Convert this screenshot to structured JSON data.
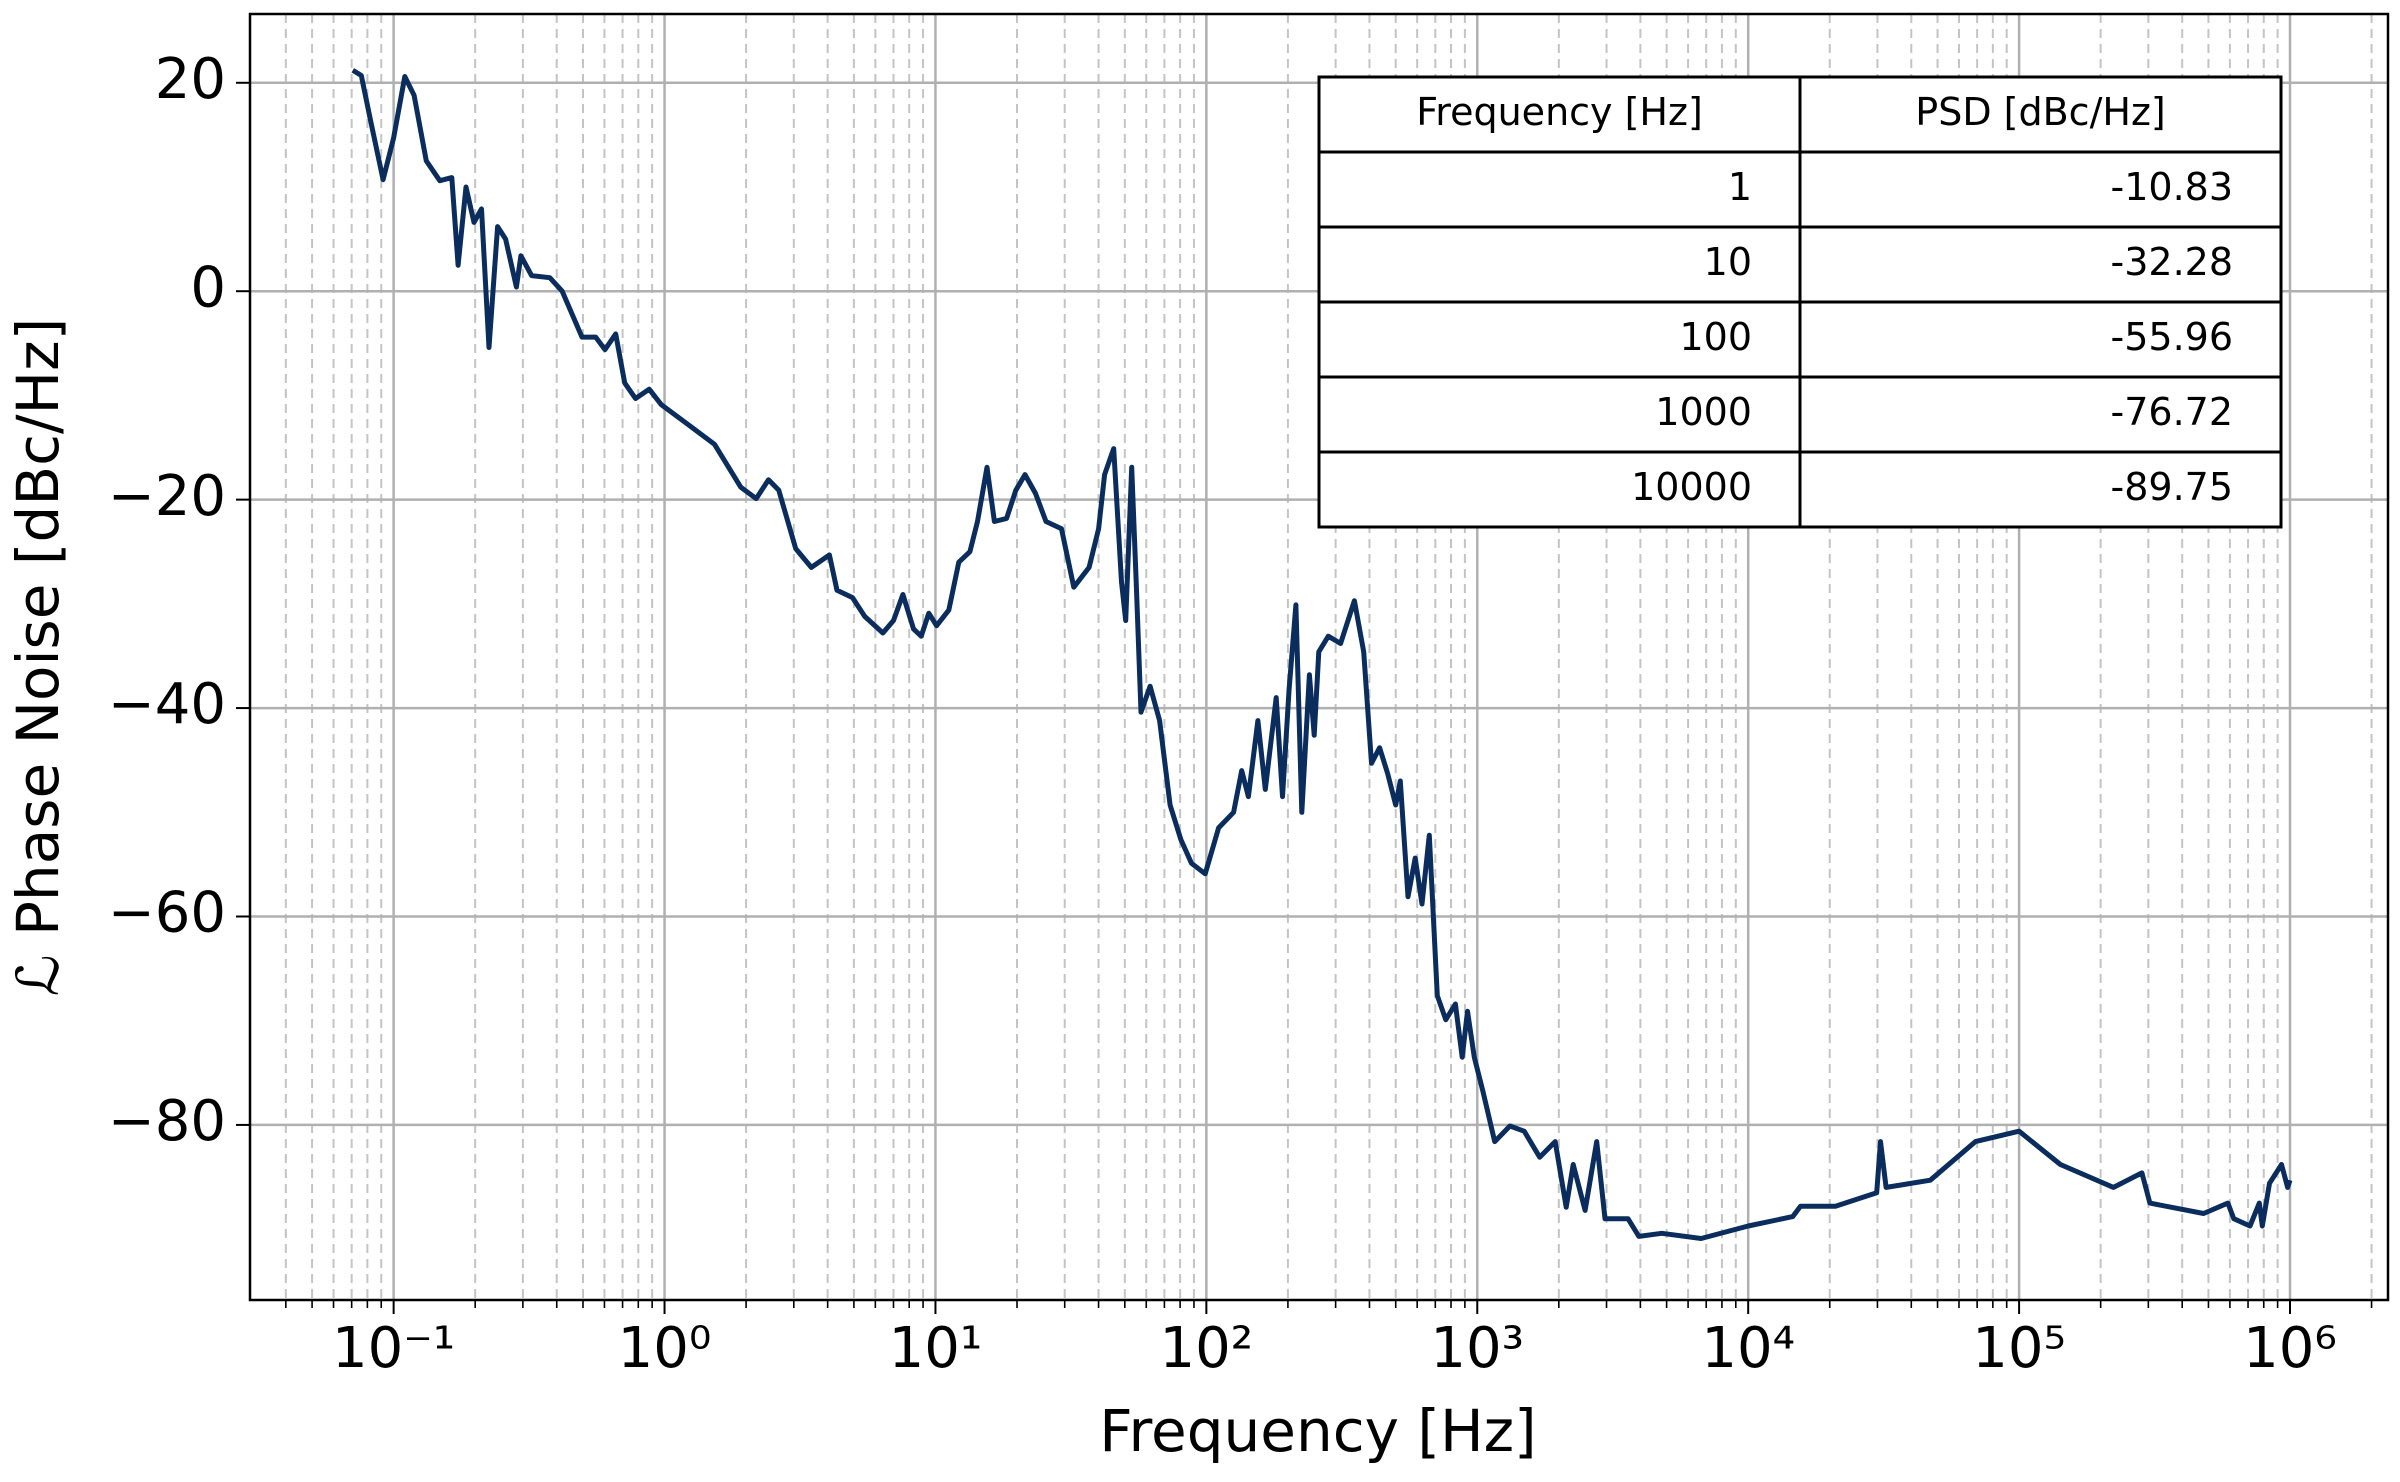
{
  "chart_data": {
    "type": "line",
    "xlabel": "Frequency [Hz]",
    "ylabel": "ℒ Phase Noise [dBc/Hz]",
    "xscale": "log",
    "grid": true,
    "color": "#0b2d5e",
    "xlim": [
      0.0295,
      2300000
    ],
    "ylim": [
      -96.8,
      26.6
    ],
    "xticks": [
      {
        "value": 0.1,
        "label": "10⁻¹"
      },
      {
        "value": 1,
        "label": "10⁰"
      },
      {
        "value": 10,
        "label": "10¹"
      },
      {
        "value": 100,
        "label": "10²"
      },
      {
        "value": 1000,
        "label": "10³"
      },
      {
        "value": 10000,
        "label": "10⁴"
      },
      {
        "value": 100000,
        "label": "10⁵"
      },
      {
        "value": 1000000,
        "label": "10⁶"
      }
    ],
    "xminorticks": [
      0.04,
      0.05,
      0.06,
      0.07,
      0.08,
      0.09,
      0.2,
      0.3,
      0.4,
      0.5,
      0.6,
      0.7,
      0.8,
      0.9,
      2,
      3,
      4,
      5,
      6,
      7,
      8,
      9,
      20,
      30,
      40,
      50,
      60,
      70,
      80,
      90,
      200,
      300,
      400,
      500,
      600,
      700,
      800,
      900,
      2000,
      3000,
      4000,
      5000,
      6000,
      7000,
      8000,
      9000,
      20000,
      30000,
      40000,
      50000,
      60000,
      70000,
      80000,
      90000,
      200000,
      300000,
      400000,
      500000,
      600000,
      700000,
      800000,
      900000,
      2000000
    ],
    "yticks": [
      {
        "value": 20,
        "label": "20"
      },
      {
        "value": 0,
        "label": "0"
      },
      {
        "value": -20,
        "label": "−20"
      },
      {
        "value": -40,
        "label": "−40"
      },
      {
        "value": -60,
        "label": "−60"
      },
      {
        "value": -80,
        "label": "−80"
      }
    ],
    "x": [
      0.0707,
      0.076,
      0.082,
      0.0914,
      0.1,
      0.11,
      0.119,
      0.132,
      0.148,
      0.164,
      0.173,
      0.185,
      0.198,
      0.211,
      0.225,
      0.242,
      0.259,
      0.284,
      0.295,
      0.323,
      0.377,
      0.419,
      0.496,
      0.557,
      0.603,
      0.66,
      0.713,
      0.781,
      0.878,
      0.974,
      1.18,
      1.53,
      1.91,
      2.18,
      2.42,
      2.64,
      3.05,
      3.48,
      4.06,
      4.33,
      4.94,
      5.48,
      6.4,
      7.0,
      7.58,
      8.3,
      8.86,
      9.45,
      10.1,
      11.2,
      12.2,
      13.4,
      14.3,
      15.5,
      16.5,
      18.3,
      19.8,
      21.4,
      23.4,
      25.6,
      29.2,
      32.4,
      36.9,
      40,
      42.1,
      45.5,
      48.6,
      50.4,
      53,
      55.1,
      57.4,
      62,
      67.2,
      73.5,
      80.5,
      88.1,
      99,
      111,
      126,
      135,
      143,
      155,
      165,
      181,
      191,
      202,
      214,
      225,
      240,
      250,
      260,
      282,
      313,
      352,
      381,
      407,
      436,
      467,
      500,
      520,
      555,
      590,
      625,
      665,
      712,
      765,
      830,
      880,
      920,
      975,
      1050,
      1160,
      1320,
      1490,
      1700,
      1940,
      2130,
      2260,
      2500,
      2760,
      2960,
      3600,
      3950,
      4800,
      6700,
      10000,
      14600,
      15600,
      21000,
      29800,
      30800,
      32300,
      47000,
      69000,
      100000,
      142000,
      223000,
      284000,
      304000,
      480000,
      590000,
      620000,
      712000,
      770000,
      790000,
      840000,
      930000,
      980000,
      1000000
    ],
    "values": [
      21.2,
      20.7,
      16.5,
      10.7,
      14.7,
      20.6,
      18.8,
      12.5,
      10.6,
      10.9,
      2.5,
      10,
      6.6,
      7.9,
      -5.4,
      6.2,
      5.0,
      0.4,
      3.4,
      1.5,
      1.3,
      0,
      -4.4,
      -4.4,
      -5.6,
      -4.1,
      -8.8,
      -10.3,
      -9.4,
      -10.9,
      -12.5,
      -14.7,
      -18.8,
      -19.9,
      -18.1,
      -19.1,
      -24.7,
      -26.5,
      -25.3,
      -28.7,
      -29.4,
      -31.2,
      -32.8,
      -31.6,
      -29.1,
      -32.4,
      -33.1,
      -30.9,
      -32.1,
      -30.6,
      -26.0,
      -25.0,
      -22.1,
      -16.9,
      -22.1,
      -21.8,
      -19.1,
      -17.6,
      -19.4,
      -22.1,
      -22.8,
      -28.4,
      -26.5,
      -22.8,
      -17.6,
      -15.1,
      -27.9,
      -31.6,
      -16.9,
      -27.9,
      -40.4,
      -37.9,
      -41.2,
      -49.3,
      -52.6,
      -54.9,
      -55.9,
      -51.5,
      -50,
      -46,
      -48.5,
      -41.2,
      -47.8,
      -39,
      -48.5,
      -38.2,
      -30.1,
      -50,
      -36.8,
      -42.6,
      -34.6,
      -33.1,
      -33.8,
      -29.7,
      -34.6,
      -45.3,
      -43.8,
      -46.3,
      -49.3,
      -47,
      -58.1,
      -54.4,
      -58.8,
      -52.2,
      -67.6,
      -69.9,
      -68.4,
      -73.5,
      -69.1,
      -73.5,
      -76.8,
      -81.6,
      -80.1,
      -80.6,
      -83.1,
      -81.6,
      -87.9,
      -83.8,
      -88.2,
      -81.6,
      -89,
      -89,
      -90.7,
      -90.4,
      -90.9,
      -89.7,
      -88.8,
      -87.8,
      -87.8,
      -86.5,
      -81.6,
      -86,
      -85.3,
      -81.6,
      -80.6,
      -83.8,
      -86,
      -84.6,
      -87.5,
      -88.5,
      -87.5,
      -89,
      -89.7,
      -87.5,
      -89.7,
      -85.6,
      -83.8,
      -86,
      -85.3
    ],
    "table": {
      "columns": [
        "Frequency [Hz]",
        "PSD [dBc/Hz]"
      ],
      "rows": [
        [
          1,
          -10.83
        ],
        [
          10,
          -32.28
        ],
        [
          100,
          -55.96
        ],
        [
          1000,
          -76.72
        ],
        [
          10000,
          -89.75
        ]
      ]
    }
  }
}
